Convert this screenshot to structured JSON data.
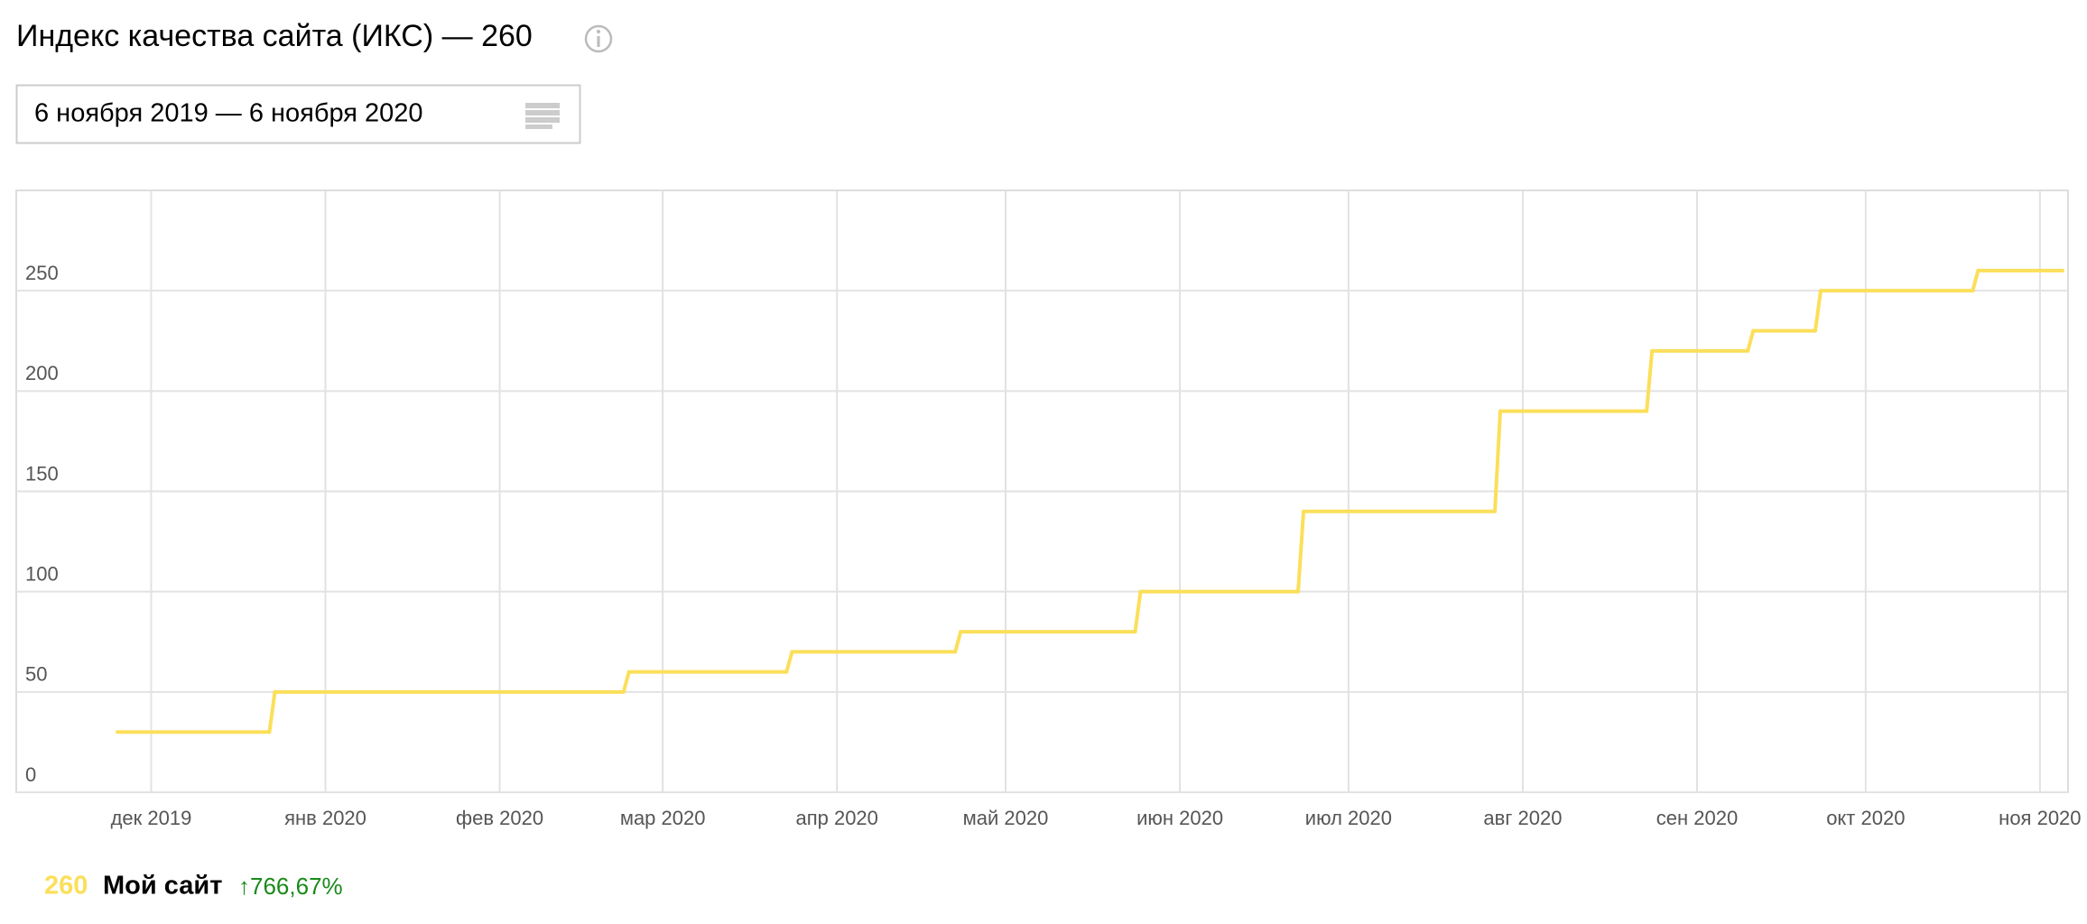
{
  "header": {
    "title": "Индекс качества сайта (ИКС) — 260",
    "date_range": "6 ноября 2019 — 6 ноября 2020"
  },
  "chart_data": {
    "type": "step",
    "x": [
      "2019-11-25",
      "2019-12-23",
      "2020-02-24",
      "2020-03-24",
      "2020-04-23",
      "2020-05-25",
      "2020-06-23",
      "2020-07-28",
      "2020-08-24",
      "2020-09-11",
      "2020-09-23",
      "2020-10-21",
      "2020-11-06"
    ],
    "series": [
      {
        "name": "Мой сайт",
        "color": "#fbdf5a",
        "values": [
          30,
          50,
          60,
          70,
          80,
          100,
          140,
          190,
          220,
          230,
          250,
          260,
          260
        ]
      }
    ],
    "xlim": [
      "2019-11-07",
      "2020-11-06"
    ],
    "xticks": [
      {
        "value": "2019-12-01",
        "label": "дек 2019"
      },
      {
        "value": "2020-01-01",
        "label": "янв 2020"
      },
      {
        "value": "2020-02-01",
        "label": "фев 2020"
      },
      {
        "value": "2020-03-01",
        "label": "мар 2020"
      },
      {
        "value": "2020-04-01",
        "label": "апр 2020"
      },
      {
        "value": "2020-05-01",
        "label": "май 2020"
      },
      {
        "value": "2020-06-01",
        "label": "июн 2020"
      },
      {
        "value": "2020-07-01",
        "label": "июл 2020"
      },
      {
        "value": "2020-08-01",
        "label": "авг 2020"
      },
      {
        "value": "2020-09-01",
        "label": "сен 2020"
      },
      {
        "value": "2020-10-01",
        "label": "окт 2020"
      },
      {
        "value": "2020-11-01",
        "label": "ноя 2020"
      }
    ],
    "ylim": [
      0,
      300
    ],
    "yticks": [
      0,
      50,
      100,
      150,
      200,
      250
    ],
    "grid": true,
    "legend": {
      "current_value": 260,
      "change": "↑766,67%"
    }
  }
}
